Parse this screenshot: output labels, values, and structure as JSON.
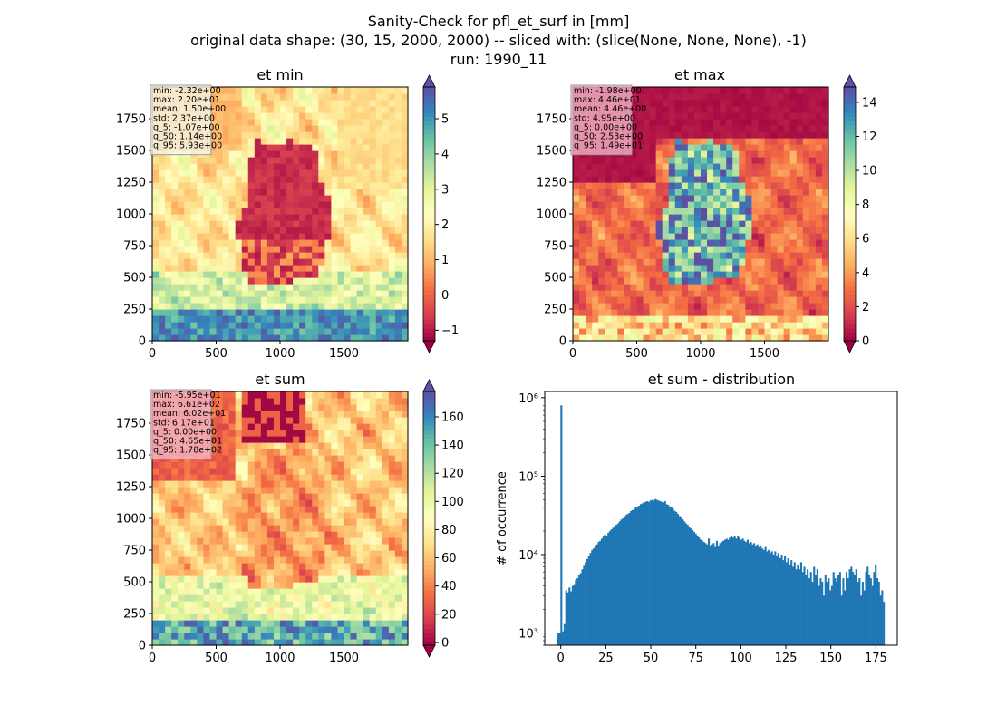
{
  "header": {
    "title_line1": "Sanity-Check for pfl_et_surf in [mm]",
    "title_line2": "original data shape: (30, 15, 2000, 2000) -- sliced with: (slice(None, None, None), -1)",
    "title_line3": "run: 1990_11"
  },
  "chart_data": [
    {
      "type": "heatmap",
      "title": "et min",
      "xlabel": "",
      "ylabel": "",
      "xlim": [
        0,
        2000
      ],
      "ylim": [
        0,
        2000
      ],
      "x_ticks": [
        0,
        500,
        1000,
        1500
      ],
      "y_ticks": [
        0,
        250,
        500,
        750,
        1000,
        1250,
        1500,
        1750
      ],
      "colorbar": {
        "range": [
          -1.3,
          5.9
        ],
        "ticks": [
          -1,
          0,
          1,
          2,
          3,
          4,
          5
        ],
        "colormap": "Spectral",
        "extend": "both"
      },
      "stats": [
        "min: -2.32e+00",
        "max: 2.20e+01",
        "mean: 1.50e+00",
        "std: 2.37e+00",
        "q_5: -1.07e+00",
        "q_50: 1.14e+00",
        "q_95: 5.93e+00"
      ]
    },
    {
      "type": "heatmap",
      "title": "et max",
      "xlabel": "",
      "ylabel": "",
      "xlim": [
        0,
        2000
      ],
      "ylim": [
        0,
        2000
      ],
      "x_ticks": [
        0,
        500,
        1000,
        1500
      ],
      "y_ticks": [
        0,
        250,
        500,
        750,
        1000,
        1250,
        1500,
        1750
      ],
      "colorbar": {
        "range": [
          0,
          14.9
        ],
        "ticks": [
          0,
          2,
          4,
          6,
          8,
          10,
          12,
          14
        ],
        "colormap": "Spectral",
        "extend": "both"
      },
      "stats": [
        "min: -1.98e+00",
        "max: 4.46e+01",
        "mean: 4.46e+00",
        "std: 4.95e+00",
        "q_5: 0.00e+00",
        "q_50: 2.53e+00",
        "q_95: 1.49e+01"
      ]
    },
    {
      "type": "heatmap",
      "title": "et sum",
      "xlabel": "",
      "ylabel": "",
      "xlim": [
        0,
        2000
      ],
      "ylim": [
        0,
        2000
      ],
      "x_ticks": [
        0,
        500,
        1000,
        1500
      ],
      "y_ticks": [
        0,
        250,
        500,
        750,
        1000,
        1250,
        1500,
        1750
      ],
      "colorbar": {
        "range": [
          -2,
          178
        ],
        "ticks": [
          0,
          20,
          40,
          60,
          80,
          100,
          120,
          140,
          160
        ],
        "colormap": "Spectral",
        "extend": "both"
      },
      "stats": [
        "min: -5.95e+01",
        "max: 6.61e+02",
        "mean: 6.02e+01",
        "std: 6.17e+01",
        "q_5: 0.00e+00",
        "q_50: 4.65e+01",
        "q_95: 1.78e+02"
      ]
    },
    {
      "type": "bar",
      "title": "et sum - distribution",
      "xlabel": "",
      "ylabel": "# of occurrence",
      "xlim": [
        -8.9,
        186.9
      ],
      "ylim": [
        700,
        1200000
      ],
      "yscale": "log",
      "x_ticks": [
        0,
        25,
        50,
        75,
        100,
        125,
        150,
        175
      ],
      "y_ticks": [
        {
          "value": 1000,
          "label": "10³"
        },
        {
          "value": 10000,
          "label": "10⁴"
        },
        {
          "value": 100000,
          "label": "10⁵"
        },
        {
          "value": 1000000,
          "label": "10⁶"
        }
      ],
      "bin_start": -2,
      "bin_width": 0.9,
      "color": "#1f77b4",
      "counts": [
        1000,
        1000,
        800000,
        1050,
        1300,
        3500,
        3300,
        3800,
        3400,
        4000,
        4200,
        4800,
        5000,
        5500,
        5800,
        6500,
        7200,
        8000,
        8800,
        9500,
        10500,
        11500,
        12000,
        13000,
        13500,
        14500,
        15000,
        16000,
        17000,
        18000,
        17500,
        19000,
        20000,
        21000,
        22000,
        23000,
        24000,
        25000,
        26500,
        28000,
        29000,
        30000,
        32000,
        33000,
        34000,
        36000,
        37000,
        38000,
        40000,
        41000,
        42000,
        44000,
        45000,
        46000,
        47000,
        48000,
        47000,
        49000,
        50000,
        49000,
        51000,
        50000,
        49000,
        48000,
        47000,
        46000,
        48000,
        44000,
        43000,
        41000,
        40000,
        38000,
        36000,
        35000,
        33000,
        31000,
        30000,
        28000,
        26500,
        25000,
        24000,
        22500,
        21500,
        20500,
        19500,
        18500,
        17500,
        16500,
        15500,
        15000,
        14500,
        14000,
        13500,
        16000,
        13000,
        13500,
        14000,
        12500,
        15000,
        13000,
        14000,
        14500,
        15000,
        15500,
        16000,
        15500,
        16500,
        17000,
        16500,
        17000,
        16000,
        17500,
        16500,
        15500,
        16000,
        15000,
        14500,
        15500,
        14000,
        14500,
        13500,
        14000,
        13000,
        13500,
        12500,
        13000,
        12000,
        11500,
        12500,
        11000,
        11500,
        10500,
        11000,
        10000,
        11000,
        9500,
        10500,
        9000,
        10000,
        8500,
        9500,
        8000,
        9000,
        7500,
        8500,
        7000,
        8000,
        6500,
        7500,
        6500,
        8000,
        6000,
        7000,
        5500,
        6500,
        5000,
        6000,
        4500,
        7000,
        5500,
        6500,
        4000,
        5000,
        4500,
        3000,
        5500,
        4500,
        5000,
        3500,
        4000,
        6000,
        5000,
        4500,
        5500,
        6000,
        3000,
        5000,
        3500,
        6000,
        5000,
        6500,
        7000,
        6000,
        5500,
        6500,
        4500,
        5000,
        3000,
        4500,
        3500,
        6000,
        7000,
        5500,
        5000,
        4000,
        6000,
        7500,
        5000,
        4500,
        3000,
        3500,
        2500
      ]
    }
  ]
}
